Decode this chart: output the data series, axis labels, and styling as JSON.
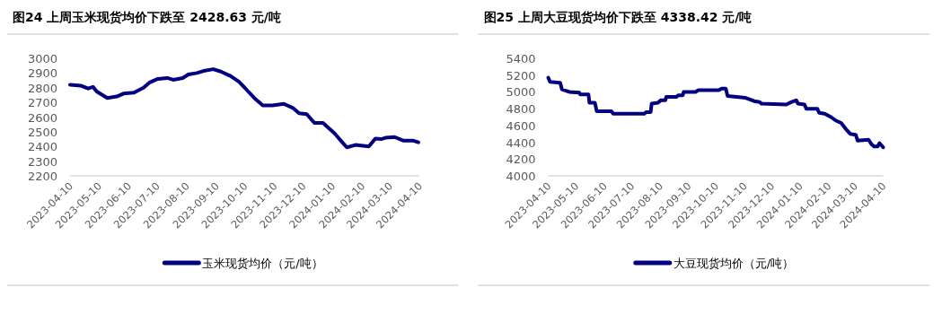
{
  "chart_data": [
    {
      "type": "line",
      "title": "图24 上周玉米现货均价下跌至 2428.63 元/吨",
      "legend": "bottom",
      "grid": false,
      "x": [
        "2023-04-10",
        "2023-04-21",
        "2023-04-29",
        "2023-05-04",
        "2023-05-08",
        "2023-05-19",
        "2023-05-29",
        "2023-06-05",
        "2023-06-16",
        "2023-06-26",
        "2023-07-02",
        "2023-07-11",
        "2023-07-21",
        "2023-07-27",
        "2023-08-06",
        "2023-08-12",
        "2023-08-21",
        "2023-08-28",
        "2023-09-07",
        "2023-09-15",
        "2023-09-25",
        "2023-10-04",
        "2023-10-10",
        "2023-10-20",
        "2023-10-29",
        "2023-11-08",
        "2023-11-20",
        "2023-11-30",
        "2023-12-06",
        "2023-12-14",
        "2023-12-22",
        "2023-12-31",
        "2024-01-12",
        "2024-01-20",
        "2024-01-25",
        "2024-02-03",
        "2024-02-17",
        "2024-02-24",
        "2024-03-01",
        "2024-03-06",
        "2024-03-15",
        "2024-03-24",
        "2024-04-03",
        "2024-04-09"
      ],
      "series": [
        {
          "name": "玉米现货均价（元/吨）",
          "color": "#000080",
          "values": [
            2820,
            2814,
            2794,
            2806,
            2774,
            2730,
            2740,
            2760,
            2766,
            2800,
            2834,
            2860,
            2866,
            2854,
            2866,
            2890,
            2900,
            2914,
            2926,
            2910,
            2880,
            2840,
            2800,
            2730,
            2680,
            2680,
            2690,
            2660,
            2626,
            2620,
            2560,
            2560,
            2490,
            2430,
            2394,
            2410,
            2400,
            2454,
            2450,
            2460,
            2464,
            2440,
            2440,
            2428
          ]
        }
      ],
      "xlim": [
        "2023-04-10",
        "2024-04-10"
      ],
      "xticks": [
        "2023-04-10",
        "2023-05-10",
        "2023-06-10",
        "2023-07-10",
        "2023-08-10",
        "2023-09-10",
        "2023-10-10",
        "2023-11-10",
        "2023-12-10",
        "2024-01-10",
        "2024-02-10",
        "2024-03-10",
        "2024-04-10"
      ],
      "ylim": [
        2200,
        3000
      ],
      "yticks": [
        2200,
        2300,
        2400,
        2500,
        2600,
        2700,
        2800,
        2900,
        3000
      ]
    },
    {
      "type": "line",
      "title": "图25 上周大豆现货均价下跌至 4338.42 元/吨",
      "legend": "bottom",
      "grid": false,
      "x": [
        "2023-04-10",
        "2023-04-12",
        "2023-04-23",
        "2023-04-25",
        "2023-05-03",
        "2023-05-14",
        "2023-05-15",
        "2023-05-24",
        "2023-05-25",
        "2023-05-31",
        "2023-06-02",
        "2023-06-18",
        "2023-06-20",
        "2023-07-24",
        "2023-07-26",
        "2023-07-31",
        "2023-08-01",
        "2023-08-08",
        "2023-08-11",
        "2023-08-16",
        "2023-08-17",
        "2023-08-28",
        "2023-08-30",
        "2023-09-04",
        "2023-09-05",
        "2023-09-18",
        "2023-09-21",
        "2023-10-07",
        "2023-10-13",
        "2023-10-17",
        "2023-10-21",
        "2023-10-23",
        "2023-11-02",
        "2023-11-11",
        "2023-11-21",
        "2023-11-27",
        "2023-11-29",
        "2023-12-26",
        "2024-01-01",
        "2024-01-06",
        "2024-01-08",
        "2024-01-15",
        "2024-01-17",
        "2024-01-29",
        "2024-01-31",
        "2024-02-06",
        "2024-02-13",
        "2024-02-18",
        "2024-02-24",
        "2024-02-29",
        "2024-03-05",
        "2024-03-11",
        "2024-03-13",
        "2024-03-25",
        "2024-03-28",
        "2024-03-31",
        "2024-04-04",
        "2024-04-06",
        "2024-04-10"
      ],
      "series": [
        {
          "name": "大豆现货均价（元/吨）",
          "color": "#000080",
          "values": [
            5170,
            5120,
            5110,
            5030,
            5000,
            4990,
            4970,
            4970,
            4870,
            4870,
            4770,
            4770,
            4740,
            4740,
            4760,
            4760,
            4860,
            4870,
            4900,
            4900,
            4940,
            4940,
            4960,
            4960,
            5000,
            5000,
            5020,
            5020,
            5020,
            5040,
            5040,
            4950,
            4940,
            4930,
            4890,
            4880,
            4860,
            4850,
            4880,
            4900,
            4860,
            4850,
            4800,
            4800,
            4750,
            4740,
            4700,
            4660,
            4630,
            4560,
            4500,
            4490,
            4420,
            4430,
            4380,
            4350,
            4350,
            4390,
            4340
          ]
        }
      ],
      "xlim": [
        "2023-04-10",
        "2024-04-10"
      ],
      "xticks": [
        "2023-04-10",
        "2023-05-10",
        "2023-06-10",
        "2023-07-10",
        "2023-08-10",
        "2023-09-10",
        "2023-10-10",
        "2023-11-10",
        "2023-12-10",
        "2024-01-10",
        "2024-02-10",
        "2024-03-10",
        "2024-04-10"
      ],
      "ylim": [
        4000,
        5400
      ],
      "yticks": [
        4000,
        4200,
        4400,
        4600,
        4800,
        5000,
        5200,
        5400
      ]
    }
  ]
}
